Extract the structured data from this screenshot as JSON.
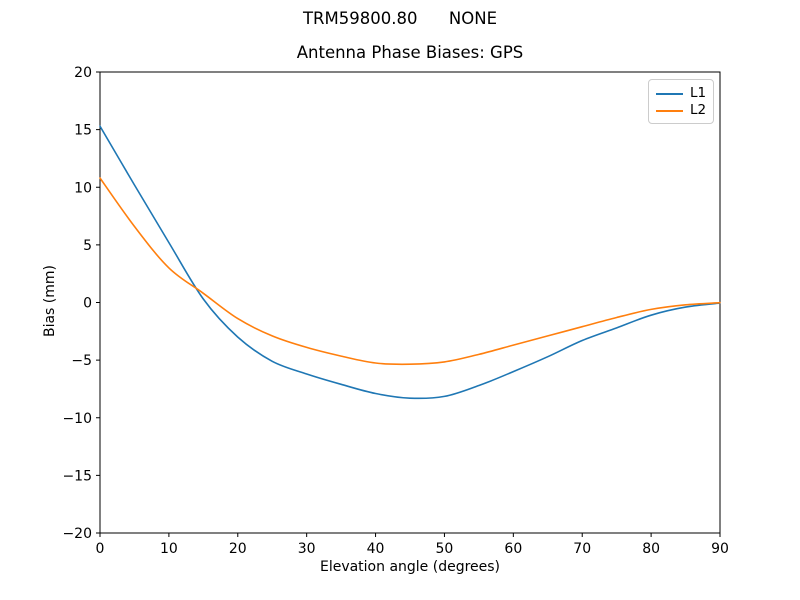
{
  "figure": {
    "suptitle": "TRM59800.80      NONE"
  },
  "chart_data": {
    "type": "line",
    "title": "Antenna Phase Biases: GPS",
    "xlabel": "Elevation angle (degrees)",
    "ylabel": "Bias (mm)",
    "xlim": [
      0,
      90
    ],
    "ylim": [
      -20,
      20
    ],
    "x_ticks": [
      0,
      10,
      20,
      30,
      40,
      50,
      60,
      70,
      80,
      90
    ],
    "y_ticks": [
      -20,
      -15,
      -10,
      -5,
      0,
      5,
      10,
      15,
      20
    ],
    "grid": false,
    "legend_position": "upper right",
    "x": [
      0,
      5,
      10,
      15,
      20,
      25,
      30,
      35,
      40,
      45,
      50,
      55,
      60,
      65,
      70,
      75,
      80,
      85,
      90
    ],
    "series": [
      {
        "name": "L1",
        "color": "#1f77b4",
        "values": [
          15.3,
          10.2,
          5.2,
          0.3,
          -3.0,
          -5.1,
          -6.2,
          -7.1,
          -7.9,
          -8.3,
          -8.15,
          -7.2,
          -6.0,
          -4.7,
          -3.3,
          -2.2,
          -1.1,
          -0.4,
          -0.05
        ]
      },
      {
        "name": "L2",
        "color": "#ff7f0e",
        "values": [
          10.8,
          6.6,
          3.0,
          0.8,
          -1.4,
          -2.9,
          -3.9,
          -4.65,
          -5.25,
          -5.35,
          -5.15,
          -4.5,
          -3.7,
          -2.9,
          -2.1,
          -1.3,
          -0.6,
          -0.2,
          -0.02
        ]
      }
    ],
    "colors": {
      "spine": "#000000",
      "text": "#000000",
      "background": "#ffffff"
    }
  }
}
